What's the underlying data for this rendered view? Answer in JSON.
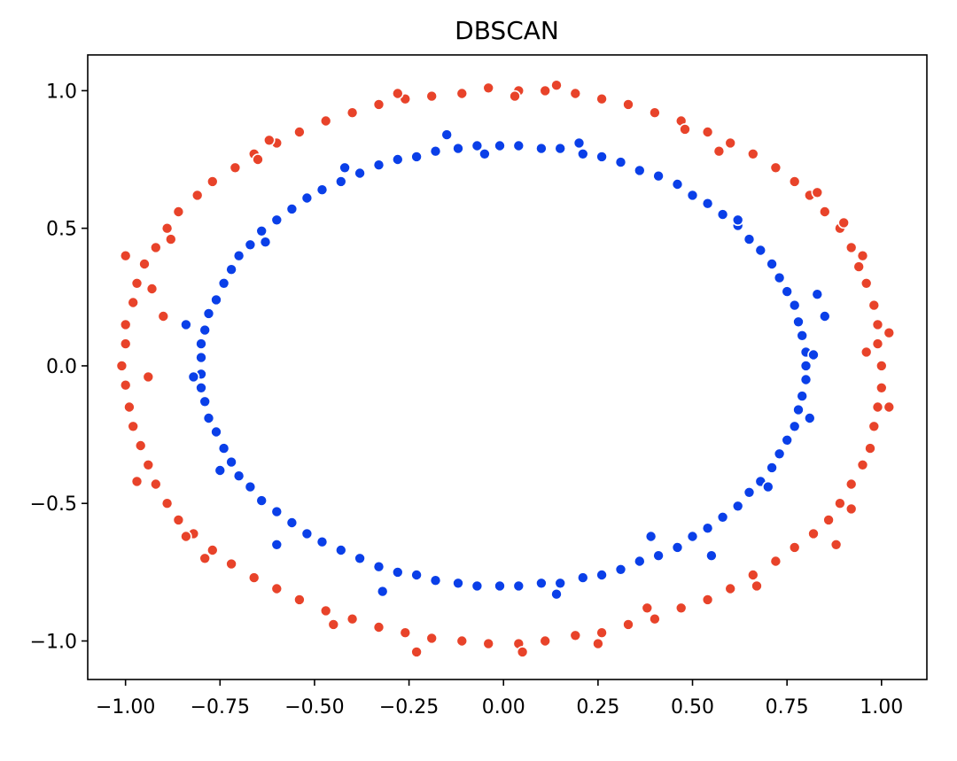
{
  "chart_data": {
    "type": "scatter",
    "title": "DBSCAN",
    "xlabel": "",
    "ylabel": "",
    "xlim": [
      -1.1,
      1.12
    ],
    "ylim": [
      -1.14,
      1.13
    ],
    "grid": false,
    "legend": "none",
    "x_ticks": [
      {
        "value": -1.0,
        "label": "−1.00"
      },
      {
        "value": -0.75,
        "label": "−0.75"
      },
      {
        "value": -0.5,
        "label": "−0.50"
      },
      {
        "value": -0.25,
        "label": "−0.25"
      },
      {
        "value": 0.0,
        "label": "0.00"
      },
      {
        "value": 0.25,
        "label": "0.25"
      },
      {
        "value": 0.5,
        "label": "0.50"
      },
      {
        "value": 0.75,
        "label": "0.75"
      },
      {
        "value": 1.0,
        "label": "1.00"
      }
    ],
    "y_ticks": [
      {
        "value": -1.0,
        "label": "−1.0"
      },
      {
        "value": -0.5,
        "label": "−0.5"
      },
      {
        "value": 0.0,
        "label": "0.0"
      },
      {
        "value": 0.5,
        "label": "0.5"
      },
      {
        "value": 1.0,
        "label": "1.0"
      }
    ],
    "series": [
      {
        "color": "#e8432a",
        "points": [
          [
            1.0,
            0.0
          ],
          [
            0.99,
            0.08
          ],
          [
            0.99,
            0.15
          ],
          [
            0.98,
            0.22
          ],
          [
            0.96,
            0.3
          ],
          [
            0.94,
            0.36
          ],
          [
            0.92,
            0.43
          ],
          [
            0.89,
            0.5
          ],
          [
            0.85,
            0.56
          ],
          [
            0.81,
            0.62
          ],
          [
            0.77,
            0.67
          ],
          [
            0.72,
            0.72
          ],
          [
            0.66,
            0.77
          ],
          [
            0.6,
            0.81
          ],
          [
            0.54,
            0.85
          ],
          [
            0.47,
            0.89
          ],
          [
            0.4,
            0.92
          ],
          [
            0.33,
            0.95
          ],
          [
            0.26,
            0.97
          ],
          [
            0.19,
            0.99
          ],
          [
            0.11,
            1.0
          ],
          [
            0.04,
            1.0
          ],
          [
            -0.04,
            1.01
          ],
          [
            -0.11,
            0.99
          ],
          [
            -0.19,
            0.98
          ],
          [
            -0.26,
            0.97
          ],
          [
            -0.33,
            0.95
          ],
          [
            -0.4,
            0.92
          ],
          [
            -0.47,
            0.89
          ],
          [
            -0.54,
            0.85
          ],
          [
            -0.6,
            0.81
          ],
          [
            -0.66,
            0.77
          ],
          [
            -0.71,
            0.72
          ],
          [
            -0.77,
            0.67
          ],
          [
            -0.81,
            0.62
          ],
          [
            -0.86,
            0.56
          ],
          [
            -0.89,
            0.5
          ],
          [
            -0.92,
            0.43
          ],
          [
            -0.95,
            0.37
          ],
          [
            -0.97,
            0.3
          ],
          [
            -0.98,
            0.23
          ],
          [
            -1.0,
            0.15
          ],
          [
            -1.0,
            0.08
          ],
          [
            -1.01,
            0.0
          ],
          [
            -1.0,
            -0.07
          ],
          [
            -0.99,
            -0.15
          ],
          [
            -0.98,
            -0.22
          ],
          [
            -0.96,
            -0.29
          ],
          [
            -0.94,
            -0.36
          ],
          [
            -0.92,
            -0.43
          ],
          [
            -0.89,
            -0.5
          ],
          [
            -0.86,
            -0.56
          ],
          [
            -0.82,
            -0.61
          ],
          [
            -0.77,
            -0.67
          ],
          [
            -0.72,
            -0.72
          ],
          [
            -0.66,
            -0.77
          ],
          [
            -0.6,
            -0.81
          ],
          [
            -0.54,
            -0.85
          ],
          [
            -0.47,
            -0.89
          ],
          [
            -0.4,
            -0.92
          ],
          [
            -0.33,
            -0.95
          ],
          [
            -0.26,
            -0.97
          ],
          [
            -0.19,
            -0.99
          ],
          [
            -0.11,
            -1.0
          ],
          [
            -0.04,
            -1.01
          ],
          [
            0.04,
            -1.01
          ],
          [
            0.11,
            -1.0
          ],
          [
            0.19,
            -0.98
          ],
          [
            0.26,
            -0.97
          ],
          [
            0.33,
            -0.94
          ],
          [
            0.4,
            -0.92
          ],
          [
            0.47,
            -0.88
          ],
          [
            0.54,
            -0.85
          ],
          [
            0.6,
            -0.81
          ],
          [
            0.66,
            -0.76
          ],
          [
            0.72,
            -0.71
          ],
          [
            0.77,
            -0.66
          ],
          [
            0.82,
            -0.61
          ],
          [
            0.86,
            -0.56
          ],
          [
            0.89,
            -0.5
          ],
          [
            0.92,
            -0.43
          ],
          [
            0.95,
            -0.36
          ],
          [
            0.97,
            -0.3
          ],
          [
            0.98,
            -0.22
          ],
          [
            0.99,
            -0.15
          ],
          [
            1.0,
            -0.08
          ],
          [
            0.96,
            0.05
          ],
          [
            1.02,
            0.12
          ],
          [
            0.95,
            0.4
          ],
          [
            0.83,
            0.63
          ],
          [
            0.57,
            0.78
          ],
          [
            0.14,
            1.02
          ],
          [
            -0.28,
            0.99
          ],
          [
            -0.65,
            0.75
          ],
          [
            -0.88,
            0.46
          ],
          [
            -1.0,
            0.4
          ],
          [
            -0.93,
            0.28
          ],
          [
            -0.94,
            -0.04
          ],
          [
            -0.97,
            -0.42
          ],
          [
            -0.79,
            -0.7
          ],
          [
            -0.45,
            -0.94
          ],
          [
            -0.23,
            -1.04
          ],
          [
            0.05,
            -1.04
          ],
          [
            0.38,
            -0.88
          ],
          [
            0.67,
            -0.8
          ],
          [
            0.92,
            -0.52
          ],
          [
            1.02,
            -0.15
          ],
          [
            -0.62,
            0.82
          ],
          [
            0.48,
            0.86
          ],
          [
            0.88,
            -0.65
          ],
          [
            -0.84,
            -0.62
          ],
          [
            0.03,
            0.98
          ],
          [
            -0.9,
            0.18
          ],
          [
            0.9,
            0.52
          ],
          [
            0.25,
            -1.01
          ]
        ]
      },
      {
        "color": "#0a3fe8",
        "points": [
          [
            0.8,
            0.0
          ],
          [
            0.8,
            0.05
          ],
          [
            0.79,
            0.11
          ],
          [
            0.78,
            0.16
          ],
          [
            0.77,
            0.22
          ],
          [
            0.75,
            0.27
          ],
          [
            0.73,
            0.32
          ],
          [
            0.71,
            0.37
          ],
          [
            0.68,
            0.42
          ],
          [
            0.65,
            0.46
          ],
          [
            0.62,
            0.51
          ],
          [
            0.58,
            0.55
          ],
          [
            0.54,
            0.59
          ],
          [
            0.5,
            0.62
          ],
          [
            0.46,
            0.66
          ],
          [
            0.41,
            0.69
          ],
          [
            0.36,
            0.71
          ],
          [
            0.31,
            0.74
          ],
          [
            0.26,
            0.76
          ],
          [
            0.21,
            0.77
          ],
          [
            0.15,
            0.79
          ],
          [
            0.1,
            0.79
          ],
          [
            0.04,
            0.8
          ],
          [
            -0.01,
            0.8
          ],
          [
            -0.07,
            0.8
          ],
          [
            -0.12,
            0.79
          ],
          [
            -0.18,
            0.78
          ],
          [
            -0.23,
            0.76
          ],
          [
            -0.28,
            0.75
          ],
          [
            -0.33,
            0.73
          ],
          [
            -0.38,
            0.7
          ],
          [
            -0.43,
            0.67
          ],
          [
            -0.48,
            0.64
          ],
          [
            -0.52,
            0.61
          ],
          [
            -0.56,
            0.57
          ],
          [
            -0.6,
            0.53
          ],
          [
            -0.64,
            0.49
          ],
          [
            -0.67,
            0.44
          ],
          [
            -0.7,
            0.4
          ],
          [
            -0.72,
            0.35
          ],
          [
            -0.74,
            0.3
          ],
          [
            -0.76,
            0.24
          ],
          [
            -0.78,
            0.19
          ],
          [
            -0.79,
            0.13
          ],
          [
            -0.8,
            0.08
          ],
          [
            -0.8,
            0.03
          ],
          [
            -0.8,
            -0.03
          ],
          [
            -0.8,
            -0.08
          ],
          [
            -0.79,
            -0.13
          ],
          [
            -0.78,
            -0.19
          ],
          [
            -0.76,
            -0.24
          ],
          [
            -0.74,
            -0.3
          ],
          [
            -0.72,
            -0.35
          ],
          [
            -0.7,
            -0.4
          ],
          [
            -0.67,
            -0.44
          ],
          [
            -0.64,
            -0.49
          ],
          [
            -0.6,
            -0.53
          ],
          [
            -0.56,
            -0.57
          ],
          [
            -0.52,
            -0.61
          ],
          [
            -0.48,
            -0.64
          ],
          [
            -0.43,
            -0.67
          ],
          [
            -0.38,
            -0.7
          ],
          [
            -0.33,
            -0.73
          ],
          [
            -0.28,
            -0.75
          ],
          [
            -0.23,
            -0.76
          ],
          [
            -0.18,
            -0.78
          ],
          [
            -0.12,
            -0.79
          ],
          [
            -0.07,
            -0.8
          ],
          [
            -0.01,
            -0.8
          ],
          [
            0.04,
            -0.8
          ],
          [
            0.1,
            -0.79
          ],
          [
            0.15,
            -0.79
          ],
          [
            0.21,
            -0.77
          ],
          [
            0.26,
            -0.76
          ],
          [
            0.31,
            -0.74
          ],
          [
            0.36,
            -0.71
          ],
          [
            0.41,
            -0.69
          ],
          [
            0.46,
            -0.66
          ],
          [
            0.5,
            -0.62
          ],
          [
            0.54,
            -0.59
          ],
          [
            0.58,
            -0.55
          ],
          [
            0.62,
            -0.51
          ],
          [
            0.65,
            -0.46
          ],
          [
            0.68,
            -0.42
          ],
          [
            0.71,
            -0.37
          ],
          [
            0.73,
            -0.32
          ],
          [
            0.75,
            -0.27
          ],
          [
            0.77,
            -0.22
          ],
          [
            0.78,
            -0.16
          ],
          [
            0.79,
            -0.11
          ],
          [
            0.8,
            -0.05
          ],
          [
            -0.15,
            0.84
          ],
          [
            0.83,
            0.26
          ],
          [
            0.82,
            0.04
          ],
          [
            0.81,
            -0.19
          ],
          [
            -0.82,
            -0.04
          ],
          [
            -0.84,
            0.15
          ],
          [
            -0.63,
            0.45
          ],
          [
            0.62,
            0.53
          ],
          [
            -0.32,
            -0.82
          ],
          [
            0.14,
            -0.83
          ],
          [
            -0.6,
            -0.65
          ],
          [
            0.7,
            -0.44
          ],
          [
            0.39,
            -0.62
          ],
          [
            -0.42,
            0.72
          ],
          [
            0.2,
            0.81
          ],
          [
            -0.05,
            0.77
          ],
          [
            0.85,
            0.18
          ],
          [
            -0.75,
            -0.38
          ],
          [
            0.55,
            -0.69
          ]
        ]
      }
    ]
  }
}
